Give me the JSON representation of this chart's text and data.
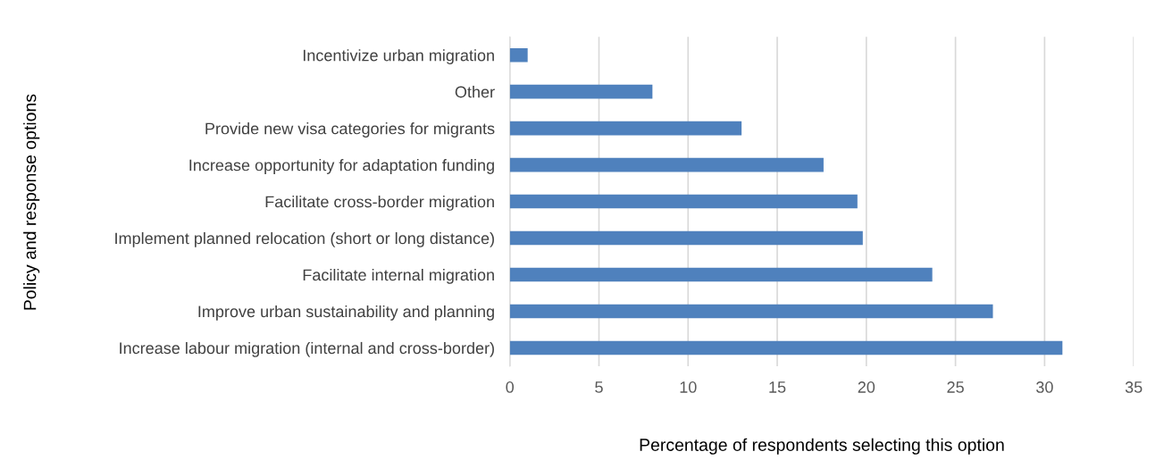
{
  "chart_data": {
    "type": "bar",
    "orientation": "horizontal",
    "categories": [
      "Incentivize urban migration",
      "Other",
      "Provide new visa categories for migrants",
      "Increase opportunity for adaptation funding",
      "Facilitate cross-border migration",
      "Implement planned relocation (short or long distance)",
      "Facilitate internal migration",
      "Improve urban sustainability and planning",
      "Increase labour migration (internal and cross-border)"
    ],
    "values": [
      1.0,
      8.0,
      13.0,
      17.6,
      19.5,
      19.8,
      23.7,
      27.1,
      31.0
    ],
    "color": "#4f81bd",
    "xlim": [
      0,
      35
    ],
    "xticks": [
      0,
      5,
      10,
      15,
      20,
      25,
      30,
      35
    ],
    "xlabel": "Percentage of respondents selecting this option",
    "ylabel": "Policy and response options",
    "grid": "x",
    "legend": false
  }
}
